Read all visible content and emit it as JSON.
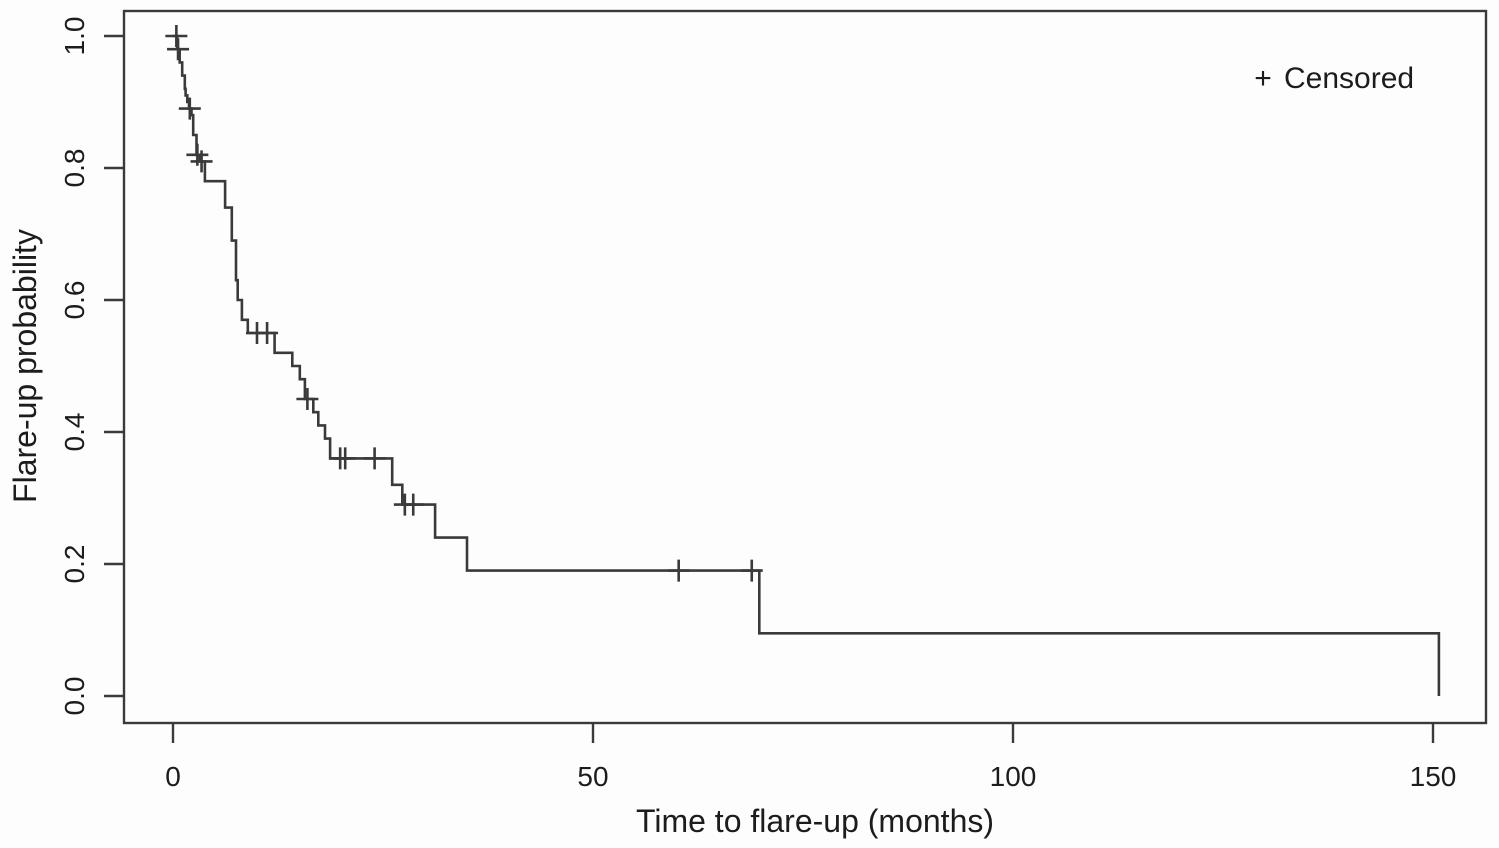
{
  "figure": {
    "background": "#fdfdfd",
    "line_color": "#3a3a3a",
    "text_color": "#1c1c1c"
  },
  "chart_data": {
    "type": "line",
    "variant": "kaplan-meier-step-curve",
    "title": "",
    "xlabel": "Time to flare-up (months)",
    "ylabel": "Flare-up probability",
    "xlim": [
      -6,
      156
    ],
    "ylim": [
      -0.04,
      1.04
    ],
    "grid": false,
    "x_ticks": [
      {
        "value": 0,
        "label": "0"
      },
      {
        "value": 50,
        "label": "50"
      },
      {
        "value": 100,
        "label": "100"
      },
      {
        "value": 150,
        "label": "150"
      }
    ],
    "y_ticks": [
      {
        "value": 0.0,
        "label": "0.0"
      },
      {
        "value": 0.2,
        "label": "0.2"
      },
      {
        "value": 0.4,
        "label": "0.4"
      },
      {
        "value": 0.6,
        "label": "0.6"
      },
      {
        "value": 0.8,
        "label": "0.8"
      },
      {
        "value": 1.0,
        "label": "1.0"
      }
    ],
    "legend": {
      "symbol": "+",
      "label": "Censored",
      "position": "top-right"
    },
    "series": [
      {
        "name": "flare-up probability",
        "style": "step",
        "color": "#3a3a3a",
        "points": [
          [
            0.0,
            1.0
          ],
          [
            0.5,
            0.98
          ],
          [
            0.8,
            0.96
          ],
          [
            1.1,
            0.94
          ],
          [
            1.4,
            0.92
          ],
          [
            1.5,
            0.91
          ],
          [
            1.7,
            0.9
          ],
          [
            1.9,
            0.89
          ],
          [
            2.2,
            0.88
          ],
          [
            2.4,
            0.85
          ],
          [
            2.8,
            0.82
          ],
          [
            3.2,
            0.81
          ],
          [
            3.8,
            0.78
          ],
          [
            6.2,
            0.74
          ],
          [
            7.0,
            0.69
          ],
          [
            7.5,
            0.63
          ],
          [
            7.7,
            0.6
          ],
          [
            8.2,
            0.57
          ],
          [
            8.9,
            0.55
          ],
          [
            12.1,
            0.52
          ],
          [
            14.2,
            0.5
          ],
          [
            15.1,
            0.48
          ],
          [
            15.7,
            0.45
          ],
          [
            16.7,
            0.43
          ],
          [
            17.3,
            0.41
          ],
          [
            18.1,
            0.39
          ],
          [
            18.7,
            0.36
          ],
          [
            26.1,
            0.32
          ],
          [
            27.3,
            0.29
          ],
          [
            31.2,
            0.24
          ],
          [
            35.0,
            0.19
          ],
          [
            69.8,
            0.095
          ],
          [
            150.7,
            0.0
          ]
        ],
        "censored": [
          [
            0.4,
            1.0
          ],
          [
            0.6,
            0.98
          ],
          [
            2.0,
            0.89
          ],
          [
            2.9,
            0.82
          ],
          [
            3.4,
            0.81
          ],
          [
            10.0,
            0.55
          ],
          [
            11.2,
            0.55
          ],
          [
            16.0,
            0.45
          ],
          [
            19.9,
            0.36
          ],
          [
            20.5,
            0.36
          ],
          [
            24.0,
            0.36
          ],
          [
            27.6,
            0.29
          ],
          [
            28.6,
            0.29
          ],
          [
            60.2,
            0.19
          ],
          [
            68.9,
            0.19
          ]
        ]
      }
    ]
  }
}
